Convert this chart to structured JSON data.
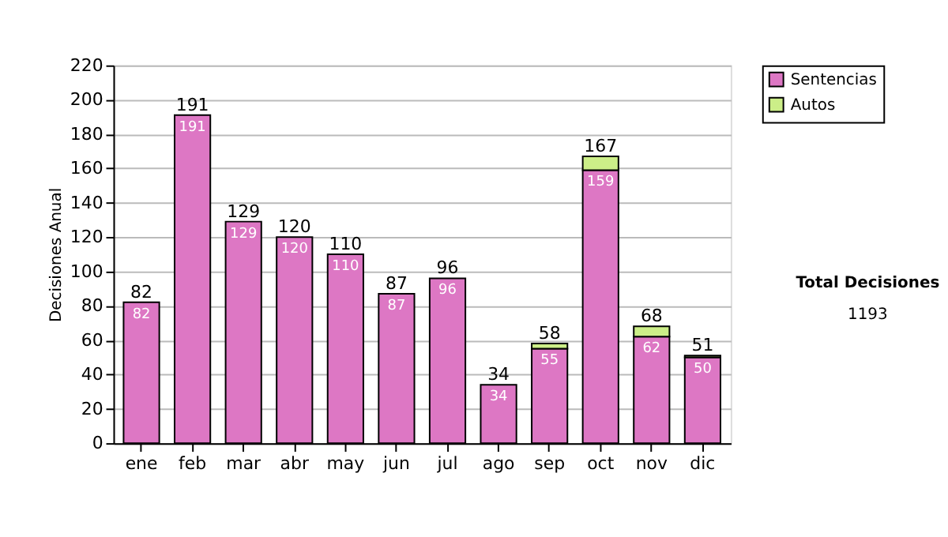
{
  "chart_data": {
    "type": "bar",
    "stacked": true,
    "ylabel": "Decisiones Anual",
    "categories": [
      "ene",
      "feb",
      "mar",
      "abr",
      "may",
      "jun",
      "jul",
      "ago",
      "sep",
      "oct",
      "nov",
      "dic"
    ],
    "series": [
      {
        "name": "Sentencias",
        "color": "#dd77c4",
        "values": [
          82,
          191,
          129,
          120,
          110,
          87,
          96,
          34,
          55,
          159,
          62,
          50
        ],
        "value_labels": [
          "82",
          "191",
          "129",
          "120",
          "110",
          "87",
          "96",
          "34",
          "55",
          "159",
          "62",
          "50"
        ]
      },
      {
        "name": "Autos",
        "color": "#ccee88",
        "values": [
          null,
          null,
          null,
          null,
          null,
          null,
          null,
          null,
          3,
          8,
          6,
          1
        ]
      }
    ],
    "totals": [
      "82",
      "191",
      "129",
      "120",
      "110",
      "87",
      "96",
      "34",
      "58",
      "167",
      "68",
      "51"
    ],
    "ylim": [
      0,
      220
    ],
    "yticks": [
      0,
      20,
      40,
      60,
      80,
      100,
      120,
      140,
      160,
      180,
      200,
      220
    ],
    "grid": "y",
    "legend": "right",
    "annotations": [
      "Total Decisiones",
      "1193"
    ]
  }
}
